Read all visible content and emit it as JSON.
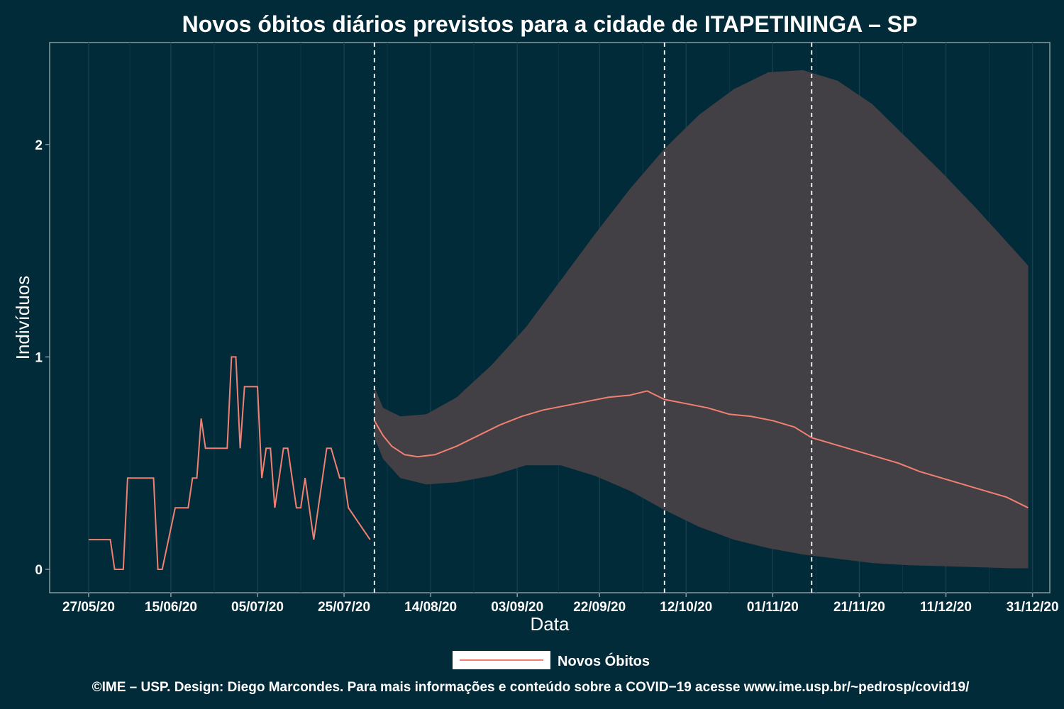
{
  "chart_data": {
    "type": "line",
    "title": "Novos óbitos diários previstos para a cidade de ITAPETININGA – SP",
    "xlabel": "Data",
    "ylabel": "Indivíduos",
    "x_ticks": [
      "27/05/20",
      "15/06/20",
      "05/07/20",
      "25/07/20",
      "14/08/20",
      "03/09/20",
      "22/09/20",
      "12/10/20",
      "01/11/20",
      "21/11/20",
      "11/12/20",
      "31/12/20"
    ],
    "x_tick_dates": [
      "2020-05-27",
      "2020-06-15",
      "2020-07-05",
      "2020-07-25",
      "2020-08-14",
      "2020-09-03",
      "2020-09-22",
      "2020-10-12",
      "2020-11-01",
      "2020-11-21",
      "2020-12-11",
      "2020-12-31"
    ],
    "y_ticks": [
      0,
      1,
      2
    ],
    "xlim": [
      "2020-05-18",
      "2021-01-04"
    ],
    "ylim": [
      -0.11,
      2.48
    ],
    "vlines": [
      "2020-08-01",
      "2020-10-07",
      "2020-11-10"
    ],
    "grid": true,
    "legend_position": "bottom",
    "series": [
      {
        "name": "Novos Óbitos",
        "color": "#f28072",
        "observed": {
          "x": [
            "2020-05-27",
            "2020-06-01",
            "2020-06-02",
            "2020-06-04",
            "2020-06-05",
            "2020-06-11",
            "2020-06-12",
            "2020-06-13",
            "2020-06-16",
            "2020-06-19",
            "2020-06-20",
            "2020-06-21",
            "2020-06-22",
            "2020-06-23",
            "2020-06-24",
            "2020-06-28",
            "2020-06-29",
            "2020-06-30",
            "2020-07-01",
            "2020-07-02",
            "2020-07-05",
            "2020-07-06",
            "2020-07-07",
            "2020-07-08",
            "2020-07-09",
            "2020-07-11",
            "2020-07-12",
            "2020-07-14",
            "2020-07-15",
            "2020-07-16",
            "2020-07-18",
            "2020-07-21",
            "2020-07-22",
            "2020-07-24",
            "2020-07-25",
            "2020-07-26",
            "2020-07-31"
          ],
          "y": [
            0.14,
            0.14,
            0,
            0,
            0.43,
            0.43,
            0,
            0,
            0.29,
            0.29,
            0.43,
            0.43,
            0.71,
            0.57,
            0.57,
            0.57,
            1.0,
            1.0,
            0.57,
            0.86,
            0.86,
            0.43,
            0.57,
            0.57,
            0.29,
            0.57,
            0.57,
            0.29,
            0.29,
            0.43,
            0.14,
            0.57,
            0.57,
            0.43,
            0.43,
            0.29,
            0.14
          ]
        },
        "forecast": {
          "x": [
            "2020-08-01",
            "2020-08-03",
            "2020-08-05",
            "2020-08-08",
            "2020-08-11",
            "2020-08-15",
            "2020-08-20",
            "2020-08-25",
            "2020-08-30",
            "2020-09-04",
            "2020-09-09",
            "2020-09-14",
            "2020-09-19",
            "2020-09-24",
            "2020-09-29",
            "2020-10-03",
            "2020-10-07",
            "2020-10-12",
            "2020-10-17",
            "2020-10-22",
            "2020-10-27",
            "2020-11-01",
            "2020-11-06",
            "2020-11-10",
            "2020-11-15",
            "2020-11-20",
            "2020-11-25",
            "2020-11-30",
            "2020-12-05",
            "2020-12-10",
            "2020-12-15",
            "2020-12-20",
            "2020-12-25",
            "2020-12-30"
          ],
          "y": [
            0.7,
            0.63,
            0.58,
            0.54,
            0.53,
            0.54,
            0.58,
            0.63,
            0.68,
            0.72,
            0.75,
            0.77,
            0.79,
            0.81,
            0.82,
            0.84,
            0.8,
            0.78,
            0.76,
            0.73,
            0.72,
            0.7,
            0.67,
            0.62,
            0.59,
            0.56,
            0.53,
            0.5,
            0.46,
            0.43,
            0.4,
            0.37,
            0.34,
            0.29
          ]
        },
        "interval": {
          "x": [
            "2020-08-01",
            "2020-08-03",
            "2020-08-07",
            "2020-08-13",
            "2020-08-20",
            "2020-08-28",
            "2020-09-05",
            "2020-09-13",
            "2020-09-21",
            "2020-09-29",
            "2020-10-07",
            "2020-10-15",
            "2020-10-23",
            "2020-10-31",
            "2020-11-08",
            "2020-11-16",
            "2020-11-24",
            "2020-12-02",
            "2020-12-10",
            "2020-12-18",
            "2020-12-26",
            "2020-12-30"
          ],
          "lower": [
            0.62,
            0.52,
            0.43,
            0.4,
            0.41,
            0.44,
            0.49,
            0.49,
            0.44,
            0.37,
            0.28,
            0.2,
            0.14,
            0.1,
            0.07,
            0.05,
            0.03,
            0.02,
            0.015,
            0.01,
            0.005,
            0.005
          ],
          "upper": [
            0.86,
            0.76,
            0.72,
            0.73,
            0.81,
            0.96,
            1.14,
            1.36,
            1.58,
            1.79,
            1.98,
            2.14,
            2.26,
            2.34,
            2.35,
            2.3,
            2.19,
            2.03,
            1.87,
            1.7,
            1.52,
            1.43
          ]
        }
      }
    ]
  },
  "legend": {
    "label": "Novos Óbitos"
  },
  "caption": "©IME – USP. Design: Diego Marcondes. Para mais informações e conteúdo sobre a COVID−19 acesse www.ime.usp.br/~pedrosp/covid19/"
}
